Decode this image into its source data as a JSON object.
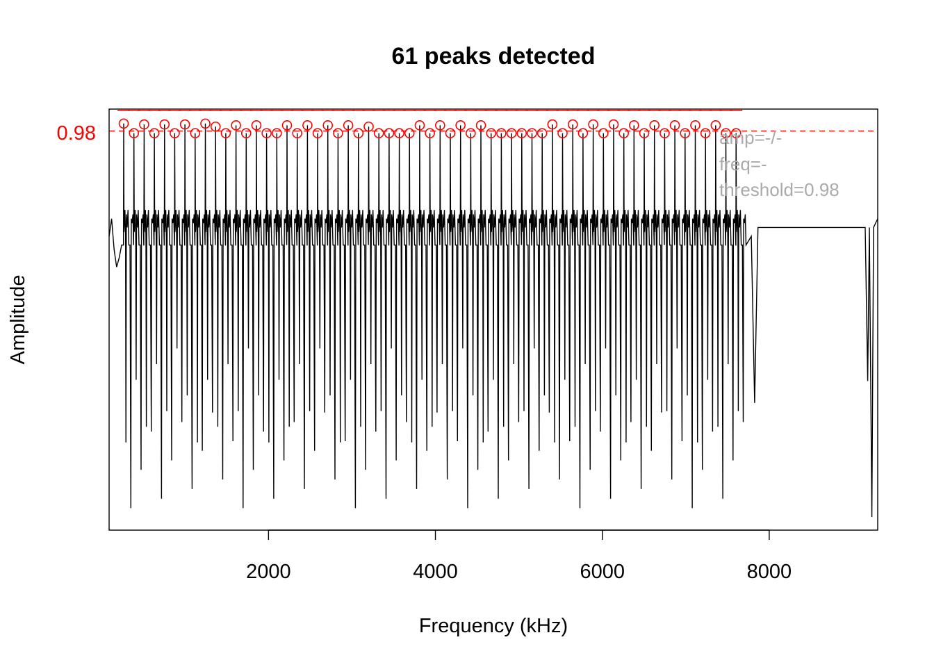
{
  "chart_data": {
    "type": "line",
    "title": "61 peaks detected",
    "xlabel": "Frequency (kHz)",
    "ylabel": "Amplitude",
    "xlim": [
      90,
      9300
    ],
    "ylim": [
      0.07,
      1.03
    ],
    "x_ticks": [
      2000,
      4000,
      6000,
      8000
    ],
    "x_tick_labels": [
      "2000",
      "4000",
      "6000",
      "8000"
    ],
    "y_ticks_shown": [
      0.98
    ],
    "threshold": 0.98,
    "threshold_label": "0.98",
    "line_color": "#000000",
    "peak_color": "#ff0000",
    "legend_color": "#aaaaaa",
    "legend": [
      "amp=-/-",
      "freq=-",
      "threshold=0.98"
    ],
    "peak_count": 61,
    "peaks": {
      "start_freq": 265,
      "spacing_freq": 122.3,
      "count": 61,
      "amplitudes": [
        0.997,
        0.975,
        0.995,
        0.975,
        0.995,
        0.975,
        0.995,
        0.975,
        0.997,
        0.99,
        0.975,
        0.993,
        0.975,
        0.993,
        0.975,
        0.975,
        0.993,
        0.975,
        0.993,
        0.975,
        0.993,
        0.975,
        0.993,
        0.975,
        0.99,
        0.975,
        0.975,
        0.975,
        0.975,
        0.993,
        0.975,
        0.993,
        0.975,
        0.993,
        0.975,
        0.993,
        0.975,
        0.975,
        0.975,
        0.975,
        0.975,
        0.975,
        0.995,
        0.975,
        0.995,
        0.975,
        0.995,
        0.975,
        0.995,
        0.975,
        0.993,
        0.975,
        0.993,
        0.975,
        0.993,
        0.975,
        0.993,
        0.975,
        0.993,
        0.975,
        0.975
      ]
    },
    "signal": {
      "baseline": 0.72,
      "secondary_peak": 0.8,
      "dip_min_low": 0.12,
      "dip_min_high": 0.36,
      "tail_level": 0.76,
      "end_dip": 0.1
    }
  }
}
